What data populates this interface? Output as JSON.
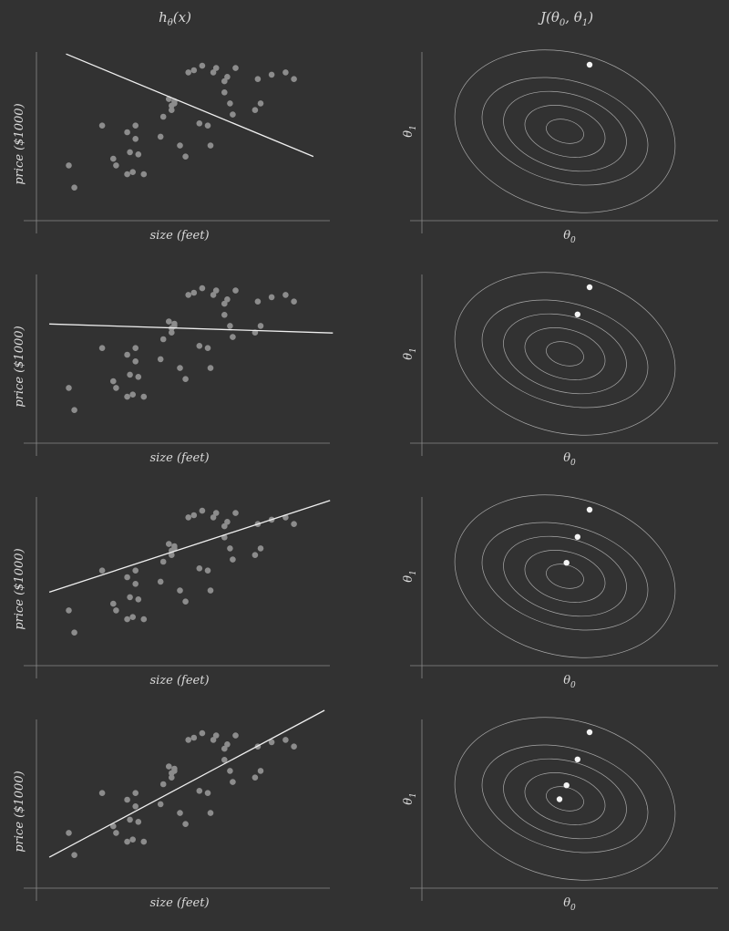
{
  "titles": {
    "left": "h",
    "left_sub": "θ",
    "left_arg": "(x)",
    "right": "J(θ",
    "right_sub0": "0",
    "right_mid": ", θ",
    "right_sub1": "1",
    "right_end": ")"
  },
  "chart_data": {
    "type": "scatter",
    "panels": 4,
    "scatter_xlabel": "size (feet)",
    "scatter_ylabel": "price ($1000)",
    "contour_xlabel": "θ",
    "contour_xlabel_sub": "0",
    "contour_ylabel": "θ",
    "contour_ylabel_sub": "1",
    "points": [
      [
        0.1,
        2.0
      ],
      [
        0.12,
        1.0
      ],
      [
        0.22,
        3.8
      ],
      [
        0.26,
        2.3
      ],
      [
        0.27,
        2.0
      ],
      [
        0.31,
        3.5
      ],
      [
        0.31,
        1.6
      ],
      [
        0.32,
        2.6
      ],
      [
        0.33,
        1.7
      ],
      [
        0.34,
        3.8
      ],
      [
        0.34,
        3.2
      ],
      [
        0.35,
        2.5
      ],
      [
        0.37,
        1.6
      ],
      [
        0.43,
        3.3
      ],
      [
        0.44,
        4.2
      ],
      [
        0.46,
        5.0
      ],
      [
        0.47,
        4.5
      ],
      [
        0.47,
        4.7
      ],
      [
        0.48,
        4.9
      ],
      [
        0.48,
        4.8
      ],
      [
        0.5,
        2.9
      ],
      [
        0.52,
        2.4
      ],
      [
        0.53,
        6.2
      ],
      [
        0.55,
        6.3
      ],
      [
        0.57,
        3.9
      ],
      [
        0.58,
        6.5
      ],
      [
        0.6,
        3.8
      ],
      [
        0.61,
        2.9
      ],
      [
        0.62,
        6.2
      ],
      [
        0.63,
        6.4
      ],
      [
        0.66,
        5.8
      ],
      [
        0.66,
        5.3
      ],
      [
        0.67,
        6.0
      ],
      [
        0.68,
        4.8
      ],
      [
        0.69,
        4.3
      ],
      [
        0.7,
        6.4
      ],
      [
        0.77,
        4.5
      ],
      [
        0.78,
        5.9
      ],
      [
        0.79,
        4.8
      ],
      [
        0.83,
        6.1
      ],
      [
        0.88,
        6.2
      ],
      [
        0.91,
        5.9
      ]
    ],
    "xlim": [
      0,
      1
    ],
    "ylim": [
      0,
      7
    ],
    "fit_lines": [
      {
        "intercept": 7.5,
        "slope": -5.2
      },
      {
        "intercept": 4.9,
        "slope": -0.4
      },
      {
        "intercept": 2.7,
        "slope": 4.1
      },
      {
        "intercept": 0.7,
        "slope": 6.7
      }
    ],
    "contour_levels": [
      0.35,
      0.75,
      1.15,
      1.55,
      2.05
    ],
    "descent_path": [
      {
        "theta0": 7.5,
        "theta1": -5.2
      },
      {
        "theta0": 4.9,
        "theta1": -0.4
      },
      {
        "theta0": 2.7,
        "theta1": 4.1
      },
      {
        "theta0": 0.7,
        "theta1": 6.7
      }
    ],
    "theta_min": {
      "theta0": 0.7,
      "theta1": 6.7
    }
  }
}
